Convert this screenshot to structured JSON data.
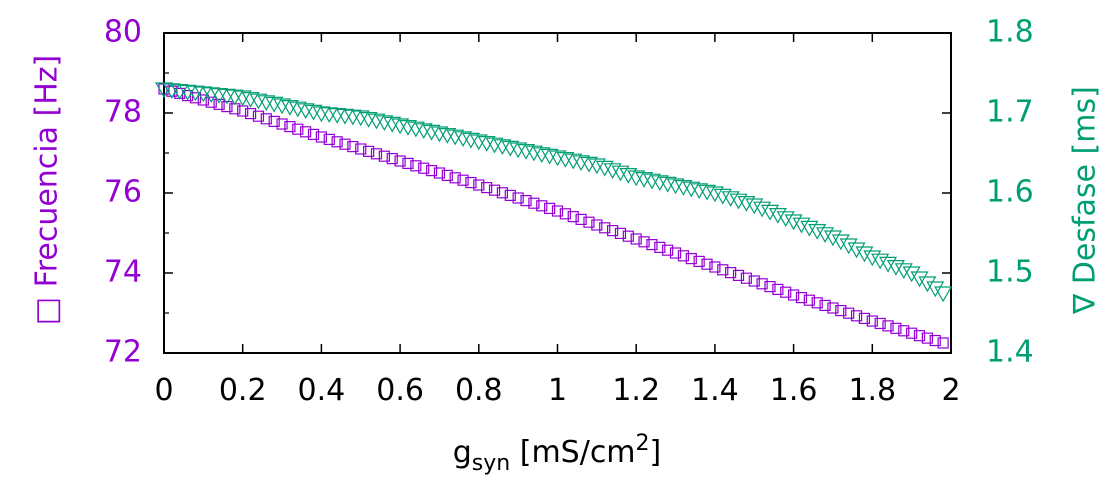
{
  "chart_data": {
    "type": "scatter",
    "xlabel": {
      "base": "g",
      "sub": "syn",
      "unit_pre": " [mS/cm",
      "sup": "2",
      "unit_post": "]"
    },
    "ylabel_left": "□ Frecuencia  [Hz]",
    "ylabel_right": "∇ Desfase [ms]",
    "xlim": [
      0,
      2
    ],
    "ylim_left": [
      72,
      80
    ],
    "ylim_right": [
      1.4,
      1.8
    ],
    "x_ticks": [
      "0",
      "0.2",
      "0.4",
      "0.6",
      "0.8",
      "1",
      "1.2",
      "1.4",
      "1.6",
      "1.8",
      "2"
    ],
    "y_ticks_left": [
      "72",
      "74",
      "76",
      "78",
      "80"
    ],
    "y_ticks_right": [
      "1.4",
      "1.5",
      "1.6",
      "1.7",
      "1.8"
    ],
    "grid": false,
    "legend": "none",
    "colors": {
      "left": "#9400d3",
      "right": "#009e73",
      "frame": "#000000"
    },
    "series": [
      {
        "axis": "left",
        "marker": "square",
        "x": [
          0.0,
          0.2,
          0.4,
          0.6,
          0.8,
          1.0,
          1.2,
          1.4,
          1.6,
          1.8,
          1.98
        ],
        "values": [
          78.6,
          78.05,
          77.4,
          76.8,
          76.2,
          75.55,
          74.85,
          74.15,
          73.45,
          72.8,
          72.25
        ]
      },
      {
        "axis": "right",
        "marker": "triangle-down",
        "x": [
          0.0,
          0.1,
          0.2,
          0.3,
          0.4,
          0.5,
          0.6,
          0.7,
          0.8,
          0.9,
          1.0,
          1.1,
          1.2,
          1.3,
          1.4,
          1.5,
          1.6,
          1.7,
          1.8,
          1.9,
          1.98
        ],
        "values": [
          1.73,
          1.725,
          1.72,
          1.71,
          1.7,
          1.695,
          1.685,
          1.675,
          1.665,
          1.655,
          1.645,
          1.635,
          1.62,
          1.61,
          1.6,
          1.585,
          1.565,
          1.545,
          1.52,
          1.5,
          1.475
        ]
      }
    ]
  }
}
